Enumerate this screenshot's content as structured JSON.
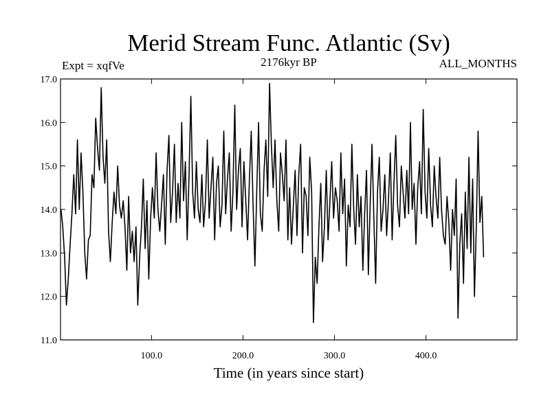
{
  "chart_data": {
    "type": "line",
    "title": "Merid Stream Func. Atlantic (Sv)",
    "annotation_left": "Expt = xqfVe",
    "annotation_center": "2176kyr BP",
    "annotation_right": "ALL_MONTHS",
    "xlabel": "Time (in years since start)",
    "ylabel": "",
    "xlim": [
      0.5,
      499.5
    ],
    "ylim": [
      11.0,
      17.0
    ],
    "x_ticks": [
      100,
      200,
      300,
      400
    ],
    "x_tick_labels": [
      "100.0",
      "200.0",
      "300.0",
      "400.0"
    ],
    "y_ticks": [
      11,
      12,
      13,
      14,
      15,
      16,
      17
    ],
    "y_tick_labels": [
      "11.0",
      "12.0",
      "13.0",
      "14.0",
      "15.0",
      "16.0",
      "17.0"
    ],
    "grid": false,
    "series": [
      {
        "name": "Merid Stream Func. Atlantic",
        "color": "#000000",
        "x_start": 1,
        "x_step": 2,
        "values": [
          14.0,
          13.6,
          12.9,
          11.8,
          12.4,
          13.2,
          13.9,
          14.8,
          13.9,
          15.6,
          14.0,
          15.3,
          14.4,
          13.0,
          12.4,
          13.3,
          13.4,
          14.8,
          14.5,
          16.1,
          15.4,
          14.9,
          16.8,
          15.2,
          14.6,
          15.6,
          13.5,
          12.8,
          13.7,
          14.4,
          13.9,
          15.0,
          14.1,
          13.8,
          14.2,
          13.6,
          12.6,
          14.3,
          13.0,
          13.5,
          12.8,
          13.6,
          11.8,
          12.9,
          13.6,
          14.7,
          13.1,
          14.2,
          12.4,
          13.8,
          14.5,
          13.8,
          15.3,
          14.0,
          13.5,
          14.1,
          14.8,
          13.2,
          14.9,
          15.7,
          13.7,
          14.4,
          15.5,
          13.7,
          14.6,
          13.8,
          16.0,
          14.2,
          15.1,
          13.3,
          14.8,
          16.6,
          14.4,
          13.8,
          15.1,
          14.0,
          13.7,
          14.8,
          13.6,
          14.2,
          15.6,
          13.8,
          14.5,
          15.2,
          13.3,
          14.6,
          15.0,
          13.6,
          14.1,
          15.8,
          13.9,
          14.7,
          15.3,
          13.5,
          14.4,
          16.4,
          14.0,
          14.9,
          15.4,
          13.6,
          15.1,
          14.2,
          13.3,
          14.7,
          15.8,
          14.1,
          12.7,
          14.4,
          16.0,
          13.9,
          13.5,
          14.9,
          15.6,
          14.3,
          16.9,
          15.5,
          14.5,
          15.6,
          14.2,
          13.5,
          15.3,
          14.8,
          14.2,
          15.6,
          13.3,
          14.5,
          13.2,
          14.1,
          14.9,
          13.4,
          14.8,
          15.5,
          13.0,
          14.5,
          14.3,
          13.4,
          15.2,
          14.4,
          11.4,
          12.9,
          12.3,
          13.6,
          14.6,
          12.8,
          13.6,
          14.9,
          13.3,
          14.2,
          15.1,
          13.8,
          14.5,
          14.2,
          13.5,
          15.3,
          13.9,
          14.7,
          12.7,
          14.1,
          13.6,
          15.5,
          14.0,
          13.2,
          14.8,
          13.6,
          14.3,
          12.6,
          13.9,
          14.9,
          12.5,
          14.1,
          15.5,
          13.8,
          12.3,
          14.4,
          15.2,
          13.5,
          14.0,
          14.8,
          13.4,
          14.2,
          15.3,
          13.3,
          14.6,
          15.7,
          14.1,
          13.6,
          15.0,
          14.4,
          13.8,
          14.9,
          13.9,
          16.0,
          14.0,
          14.6,
          13.2,
          14.5,
          15.1,
          13.9,
          16.3,
          14.4,
          13.8,
          15.4,
          14.1,
          13.6,
          15.0,
          14.3,
          13.8,
          15.2,
          14.0,
          13.4,
          13.2,
          14.3,
          13.7,
          12.6,
          14.0,
          13.4,
          14.7,
          11.5,
          13.2,
          13.9,
          12.3,
          14.4,
          13.1,
          15.2,
          13.0,
          14.7,
          12.0,
          13.6,
          15.8,
          13.7,
          14.3,
          12.9
        ]
      }
    ]
  }
}
